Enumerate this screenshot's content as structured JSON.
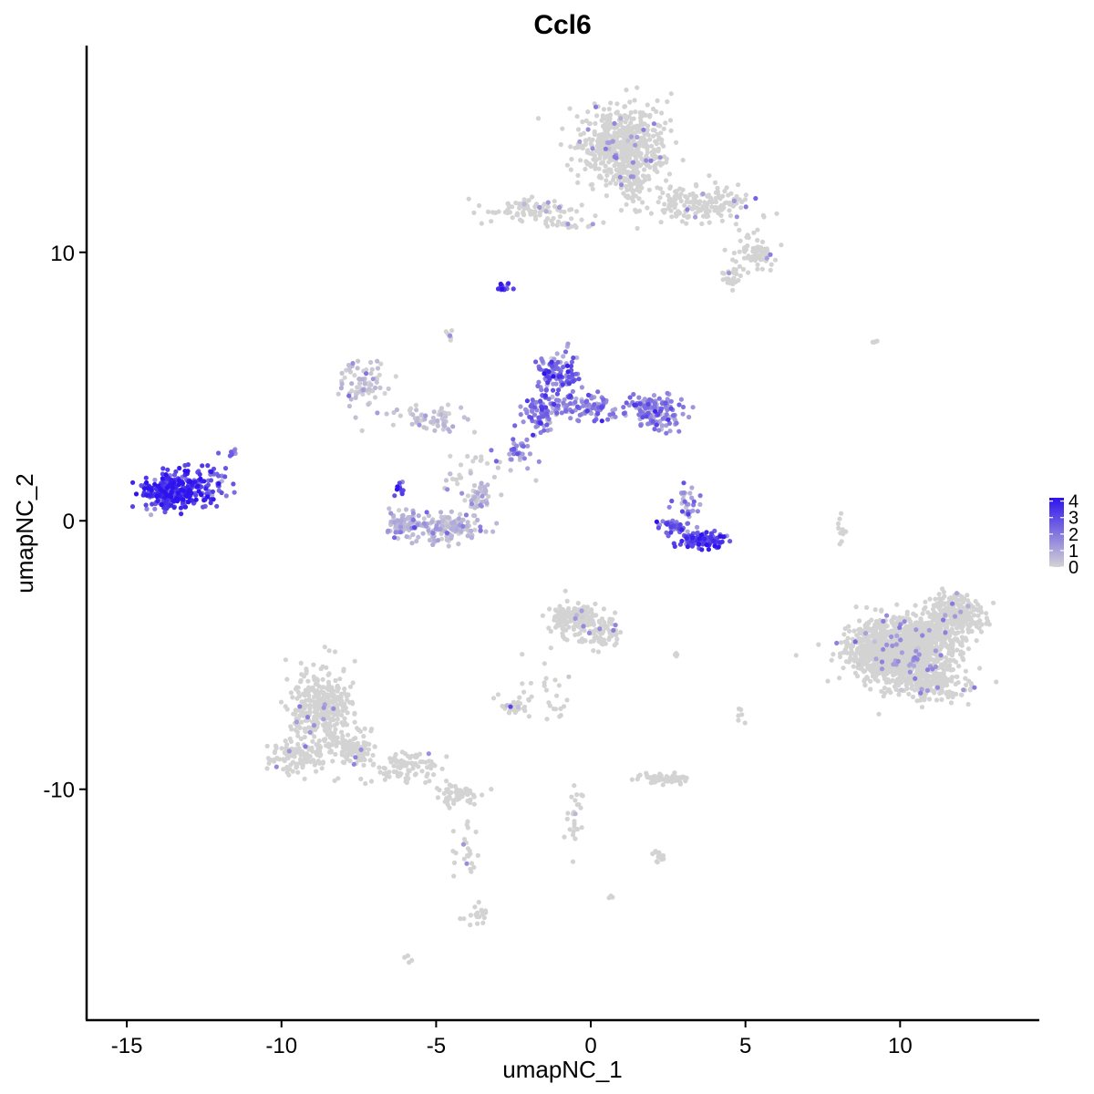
{
  "chart_data": {
    "type": "scatter",
    "title": "Ccl6",
    "xlabel": "umapNC_1",
    "ylabel": "umapNC_2",
    "xlim": [
      -16.3,
      14.5
    ],
    "ylim": [
      -18.6,
      17.7
    ],
    "xticks": [
      -15,
      -10,
      -5,
      0,
      5,
      10
    ],
    "xtick_labels": [
      "-15",
      "-10",
      "-5",
      "0",
      "5",
      "10"
    ],
    "yticks": [
      -10,
      0,
      10
    ],
    "ytick_labels": [
      "-10",
      "0",
      "10"
    ],
    "grid": false,
    "color_scale": {
      "low_color": "#d3d3d3",
      "high_color": "#2e13ee",
      "min": 0,
      "max": 4.2,
      "ticks": [
        0,
        1,
        2,
        3,
        4
      ],
      "tick_labels": [
        "0",
        "1",
        "2",
        "3",
        "4"
      ],
      "legend_position": "right"
    },
    "clusters": [
      {
        "center": [
          1.0,
          14.0
        ],
        "spread": [
          0.9,
          0.9
        ],
        "n": 550,
        "expr": 0.05,
        "hi_frac": 0.02
      },
      {
        "center": [
          1.3,
          12.6
        ],
        "spread": [
          0.4,
          0.7
        ],
        "n": 70,
        "expr": 0.05,
        "hi_frac": 0.02
      },
      {
        "center": [
          3.6,
          11.8
        ],
        "spread": [
          1.1,
          0.5
        ],
        "n": 170,
        "expr": 0.05,
        "hi_frac": 0.03
      },
      {
        "center": [
          5.4,
          10.0
        ],
        "spread": [
          0.5,
          0.35
        ],
        "n": 70,
        "expr": 0.05,
        "hi_frac": 0.02
      },
      {
        "center": [
          4.6,
          9.1
        ],
        "spread": [
          0.3,
          0.3
        ],
        "n": 25,
        "expr": 0.05,
        "hi_frac": 0.03
      },
      {
        "center": [
          -2.1,
          11.6
        ],
        "spread": [
          0.9,
          0.35
        ],
        "n": 80,
        "expr": 0.15,
        "hi_frac": 0.08
      },
      {
        "center": [
          -0.5,
          11.1
        ],
        "spread": [
          0.6,
          0.15
        ],
        "n": 20,
        "expr": 0.2,
        "hi_frac": 0.1
      },
      {
        "center": [
          -2.85,
          8.7
        ],
        "spread": [
          0.18,
          0.12
        ],
        "n": 14,
        "expr": 3.2,
        "hi_frac": 0.8
      },
      {
        "center": [
          -4.6,
          7.0
        ],
        "spread": [
          0.12,
          0.2
        ],
        "n": 7,
        "expr": 0.2,
        "hi_frac": 0.1
      },
      {
        "center": [
          -7.3,
          5.2
        ],
        "spread": [
          0.45,
          0.6
        ],
        "n": 70,
        "expr": 0.6,
        "hi_frac": 0.2
      },
      {
        "center": [
          -5.2,
          3.8
        ],
        "spread": [
          0.8,
          0.35
        ],
        "n": 60,
        "expr": 0.7,
        "hi_frac": 0.25
      },
      {
        "center": [
          -1.1,
          5.5
        ],
        "spread": [
          0.45,
          0.5
        ],
        "n": 110,
        "expr": 2.4,
        "hi_frac": 0.6
      },
      {
        "center": [
          -1.6,
          4.2
        ],
        "spread": [
          0.35,
          0.55
        ],
        "n": 80,
        "expr": 2.2,
        "hi_frac": 0.55
      },
      {
        "center": [
          -0.3,
          4.2
        ],
        "spread": [
          0.9,
          0.35
        ],
        "n": 110,
        "expr": 1.9,
        "hi_frac": 0.5
      },
      {
        "center": [
          2.1,
          4.1
        ],
        "spread": [
          0.55,
          0.5
        ],
        "n": 150,
        "expr": 2.0,
        "hi_frac": 0.5
      },
      {
        "center": [
          -2.4,
          2.6
        ],
        "spread": [
          0.35,
          0.4
        ],
        "n": 30,
        "expr": 1.8,
        "hi_frac": 0.5
      },
      {
        "center": [
          -3.8,
          1.5
        ],
        "spread": [
          1.0,
          0.9
        ],
        "n": 35,
        "expr": 0.4,
        "hi_frac": 0.3
      },
      {
        "center": [
          -13.5,
          1.1
        ],
        "spread": [
          0.65,
          0.45
        ],
        "n": 320,
        "expr": 3.3,
        "hi_frac": 0.9
      },
      {
        "center": [
          -12.3,
          1.4
        ],
        "spread": [
          0.4,
          0.5
        ],
        "n": 50,
        "expr": 2.6,
        "hi_frac": 0.7
      },
      {
        "center": [
          -11.6,
          2.6
        ],
        "spread": [
          0.12,
          0.15
        ],
        "n": 6,
        "expr": 2.5,
        "hi_frac": 0.7
      },
      {
        "center": [
          -6.0,
          -0.1
        ],
        "spread": [
          0.4,
          0.35
        ],
        "n": 90,
        "expr": 0.9,
        "hi_frac": 0.35
      },
      {
        "center": [
          -4.6,
          -0.3
        ],
        "spread": [
          0.7,
          0.35
        ],
        "n": 130,
        "expr": 0.8,
        "hi_frac": 0.3
      },
      {
        "center": [
          -3.6,
          0.9
        ],
        "spread": [
          0.25,
          0.45
        ],
        "n": 40,
        "expr": 0.8,
        "hi_frac": 0.3
      },
      {
        "center": [
          -6.2,
          1.2
        ],
        "spread": [
          0.12,
          0.2
        ],
        "n": 10,
        "expr": 3.0,
        "hi_frac": 0.8
      },
      {
        "center": [
          3.6,
          -0.7
        ],
        "spread": [
          0.55,
          0.22
        ],
        "n": 110,
        "expr": 3.0,
        "hi_frac": 0.85
      },
      {
        "center": [
          2.6,
          -0.2
        ],
        "spread": [
          0.45,
          0.2
        ],
        "n": 40,
        "expr": 2.2,
        "hi_frac": 0.6
      },
      {
        "center": [
          3.1,
          0.7
        ],
        "spread": [
          0.25,
          0.4
        ],
        "n": 30,
        "expr": 1.8,
        "hi_frac": 0.5
      },
      {
        "center": [
          -0.5,
          -3.6
        ],
        "spread": [
          0.6,
          0.45
        ],
        "n": 150,
        "expr": 0.05,
        "hi_frac": 0.03
      },
      {
        "center": [
          0.3,
          -4.2
        ],
        "spread": [
          0.5,
          0.35
        ],
        "n": 70,
        "expr": 0.05,
        "hi_frac": 0.03
      },
      {
        "center": [
          -1.6,
          -6.5
        ],
        "spread": [
          0.9,
          0.9
        ],
        "n": 35,
        "expr": 0.1,
        "hi_frac": 0.05
      },
      {
        "center": [
          -2.6,
          -6.9
        ],
        "spread": [
          0.3,
          0.15
        ],
        "n": 25,
        "expr": 0.2,
        "hi_frac": 0.1
      },
      {
        "center": [
          -8.7,
          -7.0
        ],
        "spread": [
          0.65,
          1.0
        ],
        "n": 380,
        "expr": 0.02,
        "hi_frac": 0.0
      },
      {
        "center": [
          -9.5,
          -8.8
        ],
        "spread": [
          0.6,
          0.4
        ],
        "n": 110,
        "expr": 0.02,
        "hi_frac": 0.0
      },
      {
        "center": [
          -7.7,
          -8.6
        ],
        "spread": [
          0.5,
          0.4
        ],
        "n": 90,
        "expr": 0.02,
        "hi_frac": 0.0
      },
      {
        "center": [
          -6.0,
          -9.2
        ],
        "spread": [
          0.7,
          0.35
        ],
        "n": 90,
        "expr": 0.02,
        "hi_frac": 0.0
      },
      {
        "center": [
          -4.3,
          -10.2
        ],
        "spread": [
          0.4,
          0.25
        ],
        "n": 60,
        "expr": 0.02,
        "hi_frac": 0.0
      },
      {
        "center": [
          -4.1,
          -12.3
        ],
        "spread": [
          0.25,
          0.9
        ],
        "n": 25,
        "expr": 0.02,
        "hi_frac": 0.0
      },
      {
        "center": [
          -3.6,
          -14.6
        ],
        "spread": [
          0.25,
          0.3
        ],
        "n": 20,
        "expr": 0.02,
        "hi_frac": 0.0
      },
      {
        "center": [
          -0.5,
          -11.0
        ],
        "spread": [
          0.2,
          1.0
        ],
        "n": 25,
        "expr": 0.1,
        "hi_frac": 0.05
      },
      {
        "center": [
          2.4,
          -9.6
        ],
        "spread": [
          0.55,
          0.15
        ],
        "n": 60,
        "expr": 0.05,
        "hi_frac": 0.03
      },
      {
        "center": [
          2.2,
          -12.5
        ],
        "spread": [
          0.25,
          0.15
        ],
        "n": 14,
        "expr": 0.05,
        "hi_frac": 0.05
      },
      {
        "center": [
          10.0,
          -4.8
        ],
        "spread": [
          1.0,
          0.75
        ],
        "n": 1400,
        "expr": 0.05,
        "hi_frac": 0.01
      },
      {
        "center": [
          11.7,
          -3.6
        ],
        "spread": [
          0.6,
          0.6
        ],
        "n": 300,
        "expr": 0.05,
        "hi_frac": 0.01
      },
      {
        "center": [
          11.0,
          -6.0
        ],
        "spread": [
          0.8,
          0.5
        ],
        "n": 200,
        "expr": 0.05,
        "hi_frac": 0.01
      },
      {
        "center": [
          8.1,
          -0.3
        ],
        "spread": [
          0.1,
          0.6
        ],
        "n": 10,
        "expr": 0.1,
        "hi_frac": 0.0
      },
      {
        "center": [
          4.9,
          -7.2
        ],
        "spread": [
          0.1,
          0.3
        ],
        "n": 6,
        "expr": 0.05,
        "hi_frac": 0.0
      },
      {
        "center": [
          2.8,
          -5.0
        ],
        "spread": [
          0.12,
          0.05
        ],
        "n": 6,
        "expr": 0.1,
        "hi_frac": 0.0
      },
      {
        "center": [
          9.3,
          6.7
        ],
        "spread": [
          0.15,
          0.05
        ],
        "n": 4,
        "expr": 0.05,
        "hi_frac": 0.0
      },
      {
        "center": [
          -6.0,
          -16.3
        ],
        "spread": [
          0.15,
          0.1
        ],
        "n": 5,
        "expr": 0.05,
        "hi_frac": 0.0
      },
      {
        "center": [
          0.6,
          -14.0
        ],
        "spread": [
          0.1,
          0.08
        ],
        "n": 4,
        "expr": 0.05,
        "hi_frac": 0.0
      }
    ]
  }
}
